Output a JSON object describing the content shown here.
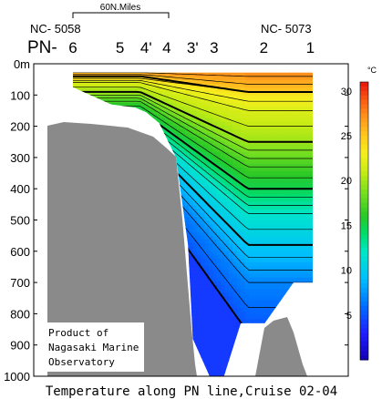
{
  "chart_data": {
    "type": "heatmap",
    "title": "Temperature along PN line,Cruise 02-04",
    "scale_label": "60N.Miles",
    "station_ids": {
      "left": "NC- 5058",
      "right": "NC- 5073"
    },
    "line_prefix": "PN-",
    "stations": [
      {
        "label": "6",
        "x": 0.0
      },
      {
        "label": "5",
        "x": 0.196
      },
      {
        "label": "4'",
        "x": 0.305
      },
      {
        "label": "4",
        "x": 0.391
      },
      {
        "label": "3'",
        "x": 0.499
      },
      {
        "label": "3",
        "x": 0.589
      },
      {
        "label": "2",
        "x": 0.796
      },
      {
        "label": "1",
        "x": 0.99
      }
    ],
    "y_axis": {
      "label": "",
      "lim": [
        0,
        1000
      ],
      "ticks": [
        "0m",
        "100",
        "200",
        "300",
        "400",
        "500",
        "600",
        "700",
        "800",
        "900",
        "1000"
      ]
    },
    "colorbar": {
      "unit": "°C",
      "range": [
        0,
        31
      ],
      "ticks": [
        "30",
        "25",
        "20",
        "15",
        "10",
        "5"
      ],
      "tick_values": [
        30,
        25,
        20,
        15,
        10,
        5
      ]
    },
    "columns": [
      {
        "x": 0.0,
        "top": 28,
        "bottom": 75,
        "surface": 25.5
      },
      {
        "x": 0.16,
        "top": 28,
        "bottom": 130,
        "surface": 25.5
      },
      {
        "x": 0.26,
        "top": 28,
        "bottom": 140,
        "surface": 26.0
      },
      {
        "x": 0.305,
        "top": 28,
        "bottom": 155,
        "surface": 26.0
      },
      {
        "x": 0.36,
        "top": 28,
        "bottom": 190,
        "surface": 26.5
      },
      {
        "x": 0.43,
        "top": 28,
        "bottom": 300,
        "surface": 27.0
      },
      {
        "x": 0.48,
        "top": 28,
        "bottom": 580,
        "surface": 27.0
      },
      {
        "x": 0.5,
        "top": 28,
        "bottom": 880,
        "surface": 27.0
      },
      {
        "x": 0.57,
        "top": 28,
        "bottom": 1000,
        "surface": 27.5
      },
      {
        "x": 0.63,
        "top": 28,
        "bottom": 1000,
        "surface": 27.5
      },
      {
        "x": 0.7,
        "top": 28,
        "bottom": 830,
        "surface": 27.5
      },
      {
        "x": 0.8,
        "top": 28,
        "bottom": 830,
        "surface": 27.0
      },
      {
        "x": 0.92,
        "top": 28,
        "bottom": 700,
        "surface": 26.0
      },
      {
        "x": 1.0,
        "top": 28,
        "bottom": 700,
        "surface": 25.5
      }
    ],
    "temperature_profile": {
      "depths": [
        28,
        50,
        75,
        100,
        125,
        150,
        175,
        200,
        225,
        250,
        275,
        300,
        350,
        400,
        450,
        500,
        550,
        600,
        650,
        700,
        800,
        900,
        1000
      ],
      "shallow_anomaly_x": [
        0.0,
        0.2,
        0.3,
        0.4,
        0.5,
        0.6,
        0.7,
        0.8,
        0.9,
        1.0
      ],
      "note_sequence": [
        0,
        0,
        0,
        0,
        0,
        0,
        0,
        0,
        0,
        0,
        0,
        0,
        0,
        0,
        0,
        0,
        0,
        0,
        0,
        0,
        0,
        0,
        0
      ]
    },
    "isotherms_labeled_bold": [
      25,
      20,
      15,
      10,
      5
    ],
    "notes": []
  },
  "bathymetry": [
    {
      "name": "west-shelf-and-slope",
      "color": "#8a8a8a"
    },
    {
      "name": "seamount",
      "color": "#8a8a8a"
    }
  ],
  "credit": {
    "line1": "Product of",
    "line2": "Nagasaki Marine",
    "line3": "Observatory"
  }
}
